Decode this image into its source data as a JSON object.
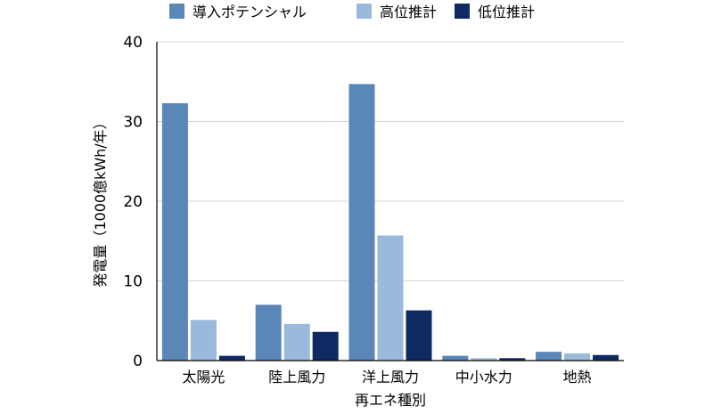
{
  "chart_data": {
    "type": "bar",
    "categories": [
      "太陽光",
      "陸上風力",
      "洋上風力",
      "中小水力",
      "地熱"
    ],
    "series": [
      {
        "name": "導入ポテンシャル",
        "color": "#5b86b8",
        "values": [
          32.3,
          7.0,
          34.7,
          0.6,
          1.1
        ]
      },
      {
        "name": "高位推計",
        "color": "#99b9dd",
        "values": [
          5.1,
          4.6,
          15.7,
          0.3,
          0.9
        ]
      },
      {
        "name": "低位推計",
        "color": "#0d2a63",
        "values": [
          0.6,
          3.6,
          6.3,
          0.3,
          0.7
        ]
      }
    ],
    "xlabel": "再エネ種別",
    "ylabel": "発電量（1000億kWh/年）",
    "ylim": [
      0,
      40
    ],
    "yticks": [
      0,
      10,
      20,
      30,
      40
    ],
    "grid": true,
    "legend_position": "top"
  }
}
